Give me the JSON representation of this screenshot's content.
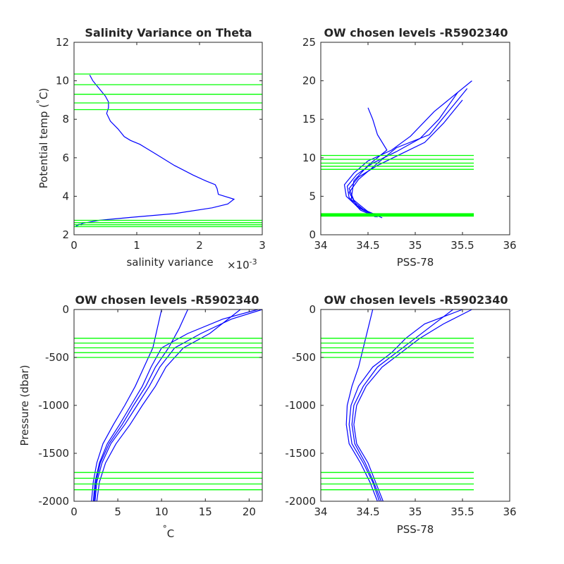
{
  "colors": {
    "profile": "#0000ff",
    "levels": "#00ff00",
    "axis": "#262626"
  },
  "chart_data": [
    {
      "id": "p1",
      "type": "line",
      "title": "Salinity Variance on Theta",
      "xlabel": "salinity variance",
      "x_exponent": "×10",
      "x_exponent_power": "-3",
      "ylabel": "Potential temp (",
      "ylabel_deg": "°",
      "ylabel_tail": "C)",
      "xlim": [
        0,
        3
      ],
      "ylim": [
        2,
        12
      ],
      "xticks": [
        "0",
        "1",
        "2",
        "3"
      ],
      "yticks": [
        "2",
        "4",
        "6",
        "8",
        "10",
        "12"
      ],
      "xtick_values": [
        0,
        1,
        2,
        3
      ],
      "ytick_values": [
        2,
        4,
        6,
        8,
        10,
        12
      ],
      "series": [
        {
          "x": [
            0.25,
            0.3,
            0.4,
            0.5,
            0.55,
            0.55,
            0.52,
            0.58,
            0.7,
            0.8,
            0.9,
            1.05,
            1.15,
            1.3,
            1.6,
            1.9,
            2.1,
            2.25,
            2.28,
            2.3,
            2.55,
            2.45,
            2.2,
            1.6,
            0.9,
            0.4,
            0.15,
            0.03,
            0.08,
            0.12
          ],
          "y": [
            10.3,
            10.0,
            9.6,
            9.2,
            8.9,
            8.6,
            8.3,
            7.9,
            7.5,
            7.1,
            6.9,
            6.7,
            6.5,
            6.2,
            5.6,
            5.1,
            4.8,
            4.6,
            4.4,
            4.1,
            3.85,
            3.6,
            3.4,
            3.1,
            2.9,
            2.75,
            2.6,
            2.45,
            2.55,
            2.5
          ]
        }
      ],
      "levels": [
        10.35,
        9.8,
        9.3,
        8.85,
        8.5,
        2.75,
        2.63,
        2.52,
        2.42
      ]
    },
    {
      "id": "p2",
      "type": "line",
      "title": "OW chosen levels -R5902340",
      "xlabel": "PSS-78",
      "xlim": [
        34,
        36
      ],
      "ylim": [
        0,
        25
      ],
      "xticks": [
        "34",
        "34.5",
        "35",
        "35.5",
        "36"
      ],
      "yticks": [
        "0",
        "5",
        "10",
        "15",
        "20",
        "25"
      ],
      "xtick_values": [
        34,
        34.5,
        35,
        35.5,
        36
      ],
      "ytick_values": [
        0,
        5,
        10,
        15,
        20,
        25
      ],
      "series": [
        {
          "x": [
            34.65,
            34.5,
            34.35,
            34.3,
            34.4,
            34.6,
            34.85,
            35.1,
            35.3,
            35.5
          ],
          "y": [
            2.2,
            3.0,
            4.5,
            6.0,
            7.5,
            9.0,
            10.5,
            12.0,
            14.5,
            17.5
          ]
        },
        {
          "x": [
            34.62,
            34.45,
            34.3,
            34.28,
            34.38,
            34.55,
            34.8,
            35.05,
            35.25,
            35.45
          ],
          "y": [
            2.4,
            3.3,
            4.8,
            6.3,
            7.8,
            9.3,
            10.8,
            12.5,
            15.0,
            18.5
          ]
        },
        {
          "x": [
            34.6,
            34.4,
            34.27,
            34.25,
            34.35,
            34.5,
            34.75,
            34.95,
            35.2,
            35.6
          ],
          "y": [
            2.3,
            3.5,
            5.0,
            6.5,
            8.0,
            9.6,
            11.0,
            12.8,
            16.0,
            20.0
          ]
        },
        {
          "x": [
            34.55,
            34.42,
            34.32,
            34.35,
            34.5,
            34.7,
            34.6,
            34.55,
            34.5
          ],
          "y": [
            2.5,
            3.2,
            4.5,
            7.0,
            9.0,
            11.0,
            13.0,
            15.0,
            16.5
          ]
        },
        {
          "x": [
            34.58,
            34.38,
            34.3,
            34.4,
            34.62,
            34.8,
            35.15,
            35.35,
            35.55
          ],
          "y": [
            2.3,
            3.8,
            5.5,
            7.2,
            9.5,
            11.3,
            13.0,
            16.0,
            19.0
          ]
        }
      ],
      "levels": [
        10.3,
        9.8,
        9.3,
        8.9,
        8.5,
        2.75,
        2.63,
        2.52,
        2.42
      ]
    },
    {
      "id": "p3",
      "type": "line",
      "title": "OW chosen levels -R5902340",
      "xlabel": "C",
      "xlabel_deg": "°",
      "ylabel": "Pressure (dbar)",
      "xlim": [
        0,
        21.5
      ],
      "ylim": [
        -2000,
        0
      ],
      "xticks": [
        "0",
        "5",
        "10",
        "15",
        "20"
      ],
      "yticks": [
        "-2000",
        "-1500",
        "-1000",
        "-500",
        "0"
      ],
      "xtick_values": [
        0,
        5,
        10,
        15,
        20
      ],
      "ytick_values": [
        -2000,
        -1500,
        -1000,
        -500,
        0
      ],
      "series": [
        {
          "x": [
            2.2,
            2.4,
            2.9,
            3.8,
            5.2,
            6.5,
            7.8,
            8.8,
            10.0,
            13.0,
            17.0,
            21.0
          ],
          "y": [
            -2000,
            -1800,
            -1600,
            -1400,
            -1200,
            -1000,
            -800,
            -600,
            -400,
            -250,
            -100,
            0
          ]
        },
        {
          "x": [
            2.4,
            2.6,
            3.2,
            4.2,
            5.8,
            7.2,
            8.6,
            9.8,
            11.5,
            14.5,
            18.0,
            21.5
          ],
          "y": [
            -2000,
            -1800,
            -1600,
            -1400,
            -1200,
            -1000,
            -800,
            -600,
            -400,
            -250,
            -100,
            0
          ]
        },
        {
          "x": [
            2.0,
            2.2,
            2.6,
            3.3,
            4.5,
            5.8,
            7.0,
            8.0,
            9.0,
            9.5,
            10.0
          ],
          "y": [
            -2000,
            -1800,
            -1600,
            -1400,
            -1200,
            -1000,
            -800,
            -600,
            -400,
            -200,
            0
          ]
        },
        {
          "x": [
            2.6,
            2.9,
            3.6,
            4.8,
            6.4,
            7.8,
            9.3,
            10.5,
            12.5,
            15.5,
            19.0
          ],
          "y": [
            -2000,
            -1800,
            -1600,
            -1400,
            -1200,
            -1000,
            -800,
            -600,
            -400,
            -250,
            0
          ]
        },
        {
          "x": [
            2.3,
            2.5,
            3.0,
            4.0,
            5.5,
            6.8,
            8.2,
            9.3,
            10.8,
            12.0,
            13.0
          ],
          "y": [
            -2000,
            -1800,
            -1600,
            -1400,
            -1200,
            -1000,
            -800,
            -600,
            -400,
            -200,
            0
          ]
        }
      ],
      "levels": [
        -300,
        -350,
        -400,
        -450,
        -500,
        -1700,
        -1760,
        -1820,
        -1880
      ]
    },
    {
      "id": "p4",
      "type": "line",
      "title": "OW chosen levels -R5902340",
      "xlabel": "PSS-78",
      "xlim": [
        34,
        36
      ],
      "ylim": [
        -2000,
        0
      ],
      "xticks": [
        "34",
        "34.5",
        "35",
        "35.5",
        "36"
      ],
      "yticks": [
        "-2000",
        "-1500",
        "-1000",
        "-500",
        "0"
      ],
      "xtick_values": [
        34,
        34.5,
        35,
        35.5,
        36
      ],
      "ytick_values": [
        -2000,
        -1500,
        -1000,
        -500,
        0
      ],
      "series": [
        {
          "x": [
            34.62,
            34.55,
            34.45,
            34.33,
            34.3,
            34.32,
            34.4,
            34.55,
            34.75,
            34.9,
            35.1,
            35.5
          ],
          "y": [
            -2000,
            -1800,
            -1600,
            -1400,
            -1200,
            -1000,
            -800,
            -600,
            -450,
            -300,
            -150,
            0
          ]
        },
        {
          "x": [
            34.66,
            34.58,
            34.5,
            34.38,
            34.35,
            34.38,
            34.48,
            34.65,
            34.85,
            35.05,
            35.3,
            35.6
          ],
          "y": [
            -2000,
            -1800,
            -1600,
            -1400,
            -1200,
            -1000,
            -800,
            -600,
            -450,
            -300,
            -150,
            0
          ]
        },
        {
          "x": [
            34.6,
            34.52,
            34.42,
            34.3,
            34.27,
            34.28,
            34.33,
            34.4,
            34.45,
            34.5,
            34.55
          ],
          "y": [
            -2000,
            -1800,
            -1600,
            -1400,
            -1200,
            -1000,
            -800,
            -600,
            -400,
            -200,
            0
          ]
        },
        {
          "x": [
            34.64,
            34.56,
            34.47,
            34.36,
            34.33,
            34.35,
            34.45,
            34.6,
            34.8,
            35.0,
            35.4
          ],
          "y": [
            -2000,
            -1800,
            -1600,
            -1400,
            -1200,
            -1000,
            -800,
            -600,
            -450,
            -300,
            0
          ]
        }
      ],
      "levels": [
        -300,
        -350,
        -400,
        -450,
        -500,
        -1700,
        -1760,
        -1820,
        -1880
      ]
    }
  ]
}
